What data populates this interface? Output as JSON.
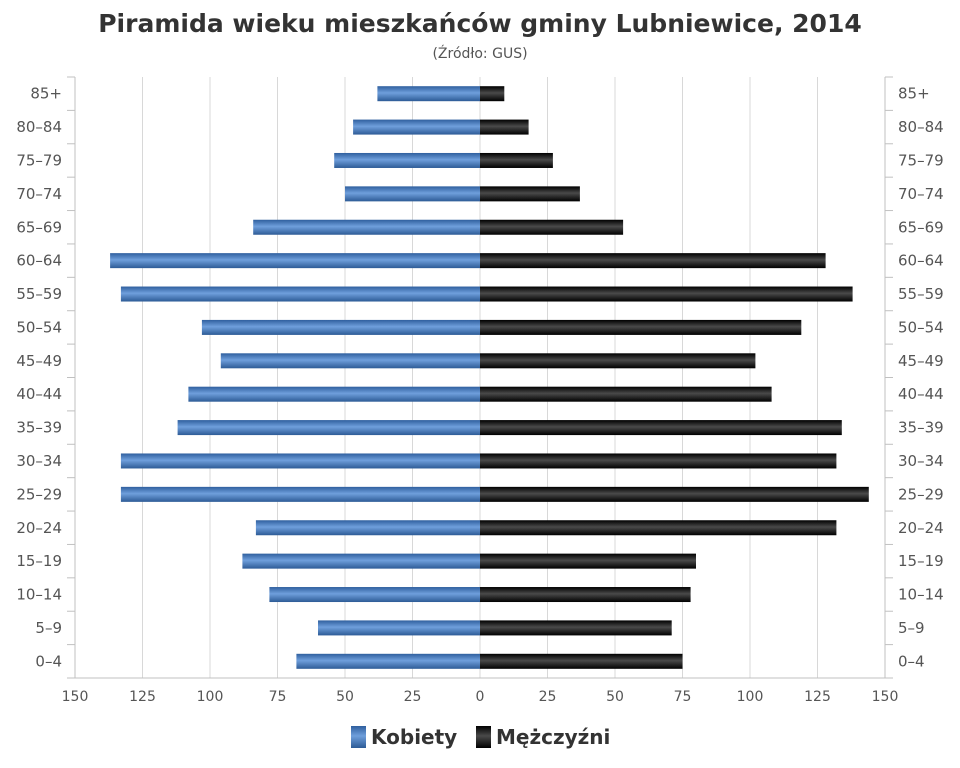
{
  "chart_data": {
    "type": "bar",
    "orientation": "horizontal",
    "title": "Piramida wieku mieszkańców gminy Lubniewice, 2014",
    "subtitle": "(Źródło: GUS)",
    "categories": [
      "85+",
      "80–84",
      "75–79",
      "70–74",
      "65–69",
      "60–64",
      "55–59",
      "50–54",
      "45–49",
      "40–44",
      "35–39",
      "30–34",
      "25–29",
      "20–24",
      "15–19",
      "10–14",
      "5–9",
      "0–4"
    ],
    "series": [
      {
        "name": "Kobiety",
        "color": "#4a7fc1",
        "direction": "left",
        "values": [
          38,
          47,
          54,
          50,
          84,
          137,
          133,
          103,
          96,
          108,
          112,
          133,
          133,
          83,
          88,
          78,
          60,
          68
        ]
      },
      {
        "name": "Mężczyźni",
        "color": "#222222",
        "direction": "right",
        "values": [
          9,
          18,
          27,
          37,
          53,
          128,
          138,
          119,
          102,
          108,
          134,
          132,
          144,
          132,
          80,
          78,
          71,
          75
        ]
      }
    ],
    "xlim": [
      -150,
      150
    ],
    "xticks": [
      150,
      125,
      100,
      75,
      50,
      25,
      0,
      25,
      50,
      75,
      100,
      125,
      150
    ],
    "grid": true,
    "legend_position": "bottom"
  }
}
